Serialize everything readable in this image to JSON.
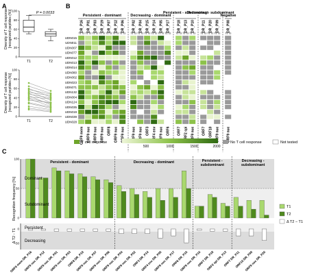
{
  "panel_labels": {
    "a": "A",
    "b": "B",
    "c": "C"
  },
  "panel_a": {
    "box_ylabel_1": "Diversity of T cell response",
    "box_ylabel_2": "[recognized peptides (%)]",
    "pval": "P = 0.0033",
    "line_ylabel_1": "Diversity of T cell response",
    "line_ylabel_2": "[recognized peptides (%)]",
    "yticks": [
      "100",
      "80",
      "60",
      "40",
      "20",
      "0"
    ],
    "xticks": [
      "T1",
      "T2"
    ]
  },
  "panel_b": {
    "groups": [
      {
        "title": "Persistent - dominant",
        "cols": 7
      },
      {
        "title": "Decreasing - dominant",
        "cols": 6
      },
      {
        "title": "Persistent - subdominant",
        "cols": 3
      },
      {
        "title": "Decreasing - subdominant",
        "cols": 3
      },
      {
        "title": "Negative",
        "cols": 1
      }
    ],
    "peptides": [
      "DR_P16",
      "DR_P01",
      "DR_P03",
      "DR_P19",
      "DR_P07",
      "DR_P12",
      "DR_P06",
      "DR_P02",
      "DR_P04",
      "DR_P15",
      "DR_P14",
      "DR_P05",
      "DR_P17",
      "DR_P18",
      "DR_P13",
      "DR_P10",
      "DR_P11",
      "DR_P20",
      "DR_P09",
      "DR_P08"
    ],
    "orfs": [
      "ORF9 mem",
      "ORF9 nuc",
      "ORF9 nuc",
      "ORF9 nuc",
      "ORF8",
      "ORF9 nuc",
      "ORF9 nuc",
      "ORF9 nuc",
      "ORF9 nuc",
      "ORF3",
      "ORF4 env",
      "ORF9 nuc",
      "ORF6",
      "ORF7",
      "ORF2 spi",
      "ORF9 nuc",
      "ORF7",
      "ORF10",
      "ORF9 nuc",
      "ORF9 nuc"
    ],
    "donors": [
      "UDN015",
      "UDN011",
      "UDN007",
      "UDN077",
      "UDN012",
      "UDN013",
      "UDN014",
      "UDN080",
      "UDN002",
      "UDN023",
      "UDN071",
      "UDN132",
      "UDN004",
      "UDN124",
      "UDN035",
      "UDN019",
      "UDN039",
      "UDN028"
    ],
    "legend": {
      "response": "T cell response",
      "no_response": "No T cell response",
      "not_tested": "Not tested",
      "ticks": [
        "500",
        "1000",
        "1500",
        "2000"
      ]
    }
  },
  "panel_c": {
    "ylabel_top": "Recognition frequency [%]",
    "ylabel_bottom": "Δ T2 - T1",
    "zones": {
      "dominant": "Dominant",
      "subdominant": "Subdominant",
      "persistent": "Persistent",
      "decreasing": "Decreasing"
    },
    "group_titles": [
      "Persistent - dominant",
      "Decreasing - dominant",
      "Persistent - subdominant",
      "Decreasing - subdominant"
    ],
    "legend": {
      "t1": "T1",
      "t2": "T2",
      "delta": "Δ T2 − T1"
    },
    "yticks_top": [
      "100",
      "50",
      "0"
    ],
    "yticks_bottom": [
      "0",
      "-50"
    ]
  },
  "chart_data": [
    {
      "type": "scatter",
      "title": "",
      "ylabel": "Diversity of T cell response [recognized peptides (%)]",
      "categories": [
        "T1",
        "T2"
      ],
      "box_t1": {
        "min": 50,
        "q1": 55,
        "median": 65,
        "q3": 80,
        "max": 90
      },
      "box_t2": {
        "min": 35,
        "q1": 45,
        "median": 50,
        "q3": 55,
        "max": 60
      },
      "ylim": [
        0,
        100
      ]
    },
    {
      "type": "line",
      "ylabel": "Diversity of T cell response [recognized peptides (%)]",
      "categories": [
        "T1",
        "T2"
      ],
      "series": [
        {
          "values": [
            72,
            55
          ]
        },
        {
          "values": [
            65,
            50
          ]
        },
        {
          "values": [
            60,
            42
          ]
        },
        {
          "values": [
            58,
            48
          ]
        },
        {
          "values": [
            55,
            35
          ]
        },
        {
          "values": [
            52,
            45
          ]
        },
        {
          "values": [
            50,
            30
          ]
        },
        {
          "values": [
            48,
            40
          ]
        },
        {
          "values": [
            45,
            25
          ]
        },
        {
          "values": [
            42,
            38
          ]
        },
        {
          "values": [
            40,
            28
          ]
        },
        {
          "values": [
            38,
            22
          ]
        },
        {
          "values": [
            35,
            30
          ]
        },
        {
          "values": [
            30,
            20
          ]
        },
        {
          "values": [
            28,
            18
          ]
        },
        {
          "values": [
            22,
            15
          ]
        },
        {
          "values": [
            18,
            12
          ]
        },
        {
          "values": [
            15,
            10
          ]
        }
      ],
      "ylim": [
        0,
        100
      ]
    },
    {
      "type": "bar",
      "ylabel": "Recognition frequency [%]",
      "categories": [
        "ORF9 mem DR_P16",
        "ORF9 nuc DR_P12",
        "ORF9 nuc DR_P01",
        "ORF9 nuc DR_P03",
        "ORF8 DR_P19",
        "ORF9 nuc DR_P07",
        "ORF9 nuc DR_P06",
        "ORF9 nuc DR_P04",
        "ORF9 nuc DR_P02",
        "ORF3 DR_P14",
        "ORF4 env DR_P05",
        "ORF9 nuc DR_P17",
        "ORF6 DR_P15",
        "ORF9 nuc DR_P10",
        "ORF7 DR_P18",
        "ORF2 spi DR_P13",
        "ORF7 DR_P11",
        "ORF10 DR_P09",
        "ORF9 nuc DR_P20"
      ],
      "series": [
        {
          "name": "T1",
          "values": [
            100,
            68,
            85,
            80,
            75,
            70,
            65,
            55,
            50,
            45,
            50,
            50,
            80,
            20,
            40,
            25,
            35,
            30,
            30
          ]
        },
        {
          "name": "T2",
          "values": [
            100,
            68,
            80,
            75,
            70,
            65,
            60,
            45,
            40,
            35,
            30,
            35,
            50,
            20,
            35,
            20,
            20,
            15,
            5
          ]
        },
        {
          "name": "Δ T2 − T1",
          "values": [
            0,
            0,
            -5,
            -5,
            -5,
            -5,
            -5,
            -10,
            -10,
            -10,
            -20,
            -15,
            -30,
            0,
            -5,
            -5,
            -15,
            -15,
            -25
          ]
        }
      ],
      "ylim": [
        -35,
        100
      ]
    }
  ]
}
